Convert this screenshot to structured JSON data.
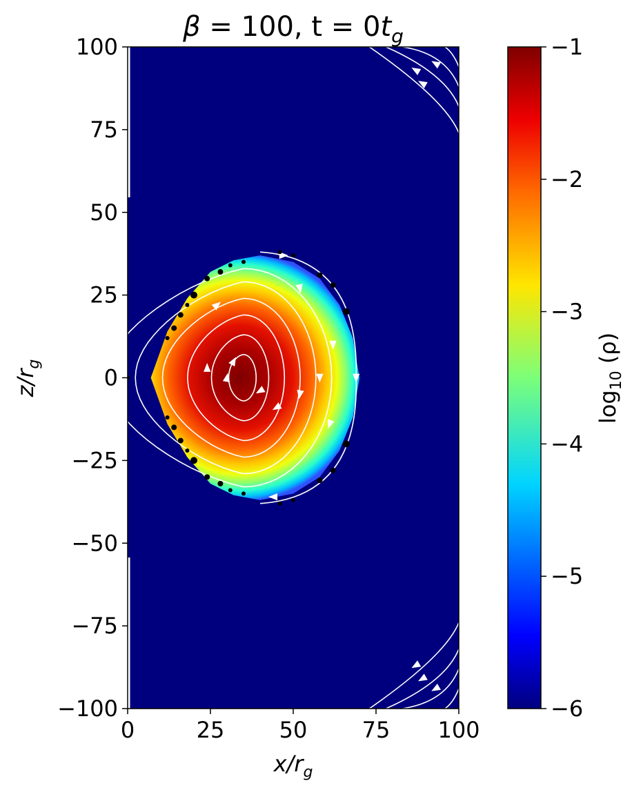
{
  "chart_data": {
    "type": "heatmap",
    "title": "β = 100, t = 0t_g",
    "title_parts": {
      "beta_symbol": "β",
      "equals_part": " = 100, t = 0",
      "t_symbol": "t",
      "g_subscript": "g"
    },
    "xlabel": "x/r_g",
    "ylabel": "z/r_g",
    "xlabel_parts": {
      "main": "x/r",
      "sub": "g"
    },
    "ylabel_parts": {
      "main": "z/r",
      "sub": "g"
    },
    "xlim": [
      0,
      100
    ],
    "ylim": [
      -100,
      100
    ],
    "x_ticks": [
      0,
      25,
      50,
      75,
      100
    ],
    "x_tick_labels": [
      "0",
      "25",
      "50",
      "75",
      "100"
    ],
    "y_ticks": [
      100,
      75,
      50,
      25,
      0,
      -25,
      -50,
      -75,
      -100
    ],
    "y_tick_labels": [
      "100",
      "75",
      "50",
      "25",
      "0",
      "−25",
      "−50",
      "−75",
      "−100"
    ],
    "colorbar": {
      "label": "log10 (ρ)",
      "label_parts": {
        "prefix": "log",
        "sub": "10",
        "suffix": " (ρ)"
      },
      "range": [
        -6,
        -1
      ],
      "ticks": [
        -1,
        -2,
        -3,
        -4,
        -5,
        -6
      ],
      "tick_labels": [
        "−1",
        "−2",
        "−3",
        "−4",
        "−5",
        "−6"
      ],
      "colormap": "jet"
    },
    "background_log_density": -6,
    "torus": {
      "description_units": "r_g",
      "inner_edge_x": 7,
      "outer_edge_x": 70,
      "density_max_x": 35,
      "density_max_z": 0,
      "max_half_height_z": 37,
      "peak_log_density": -1,
      "edge_log_density": -4.5
    },
    "field_lines": {
      "color": "#ffffff",
      "closed_loops_around_x": 35
    },
    "colors": {
      "background": "#00007f",
      "axis": "#000000",
      "streamlines": "#ffffff",
      "markers": "#000000"
    }
  }
}
